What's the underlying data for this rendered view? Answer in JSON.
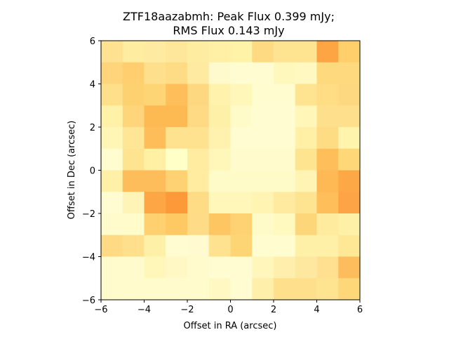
{
  "chart_data": {
    "type": "heatmap",
    "title_line1": "ZTF18aazabmh: Peak Flux 0.399 mJy;",
    "title_line2": "RMS Flux 0.143 mJy",
    "xlabel": "Offset in RA (arcsec)",
    "ylabel": "Offset in Dec (arcsec)",
    "xlim": [
      -6,
      6
    ],
    "ylim": [
      -6,
      6
    ],
    "xticks": [
      -6,
      -4,
      -2,
      0,
      2,
      4,
      6
    ],
    "yticks": [
      -6,
      -4,
      -2,
      0,
      2,
      4,
      6
    ],
    "xtick_labels": [
      "−6",
      "−4",
      "−2",
      "0",
      "2",
      "4",
      "6"
    ],
    "ytick_labels": [
      "−6",
      "−4",
      "−2",
      "0",
      "2",
      "4",
      "6"
    ],
    "colormap": "YlOrRd (light end)",
    "grid": "12x12 pixels, 1 arcsec each; rows listed from top (Dec 6) to bottom (Dec -6), columns from left (RA -6) to right (RA 6)",
    "pixel_colors": [
      [
        "#fee292",
        "#feeda0",
        "#feeaa0",
        "#fee79a",
        "#feeda0",
        "#fff0a5",
        "#fff3a8",
        "#feda83",
        "#fee390",
        "#fee390",
        "#fda443",
        "#fecf6a"
      ],
      [
        "#fed57a",
        "#fece6f",
        "#fee08c",
        "#fedc85",
        "#feeaa0",
        "#ffface",
        "#fffcd2",
        "#fffcd2",
        "#fff8bc",
        "#fff8c0",
        "#fed97d",
        "#fed97d"
      ],
      [
        "#fee08a",
        "#fed170",
        "#fed574",
        "#febf5a",
        "#fed880",
        "#fff2ac",
        "#fff6ba",
        "#fffcd0",
        "#fffcd0",
        "#fee390",
        "#fedd85",
        "#fed880"
      ],
      [
        "#fff1a8",
        "#fed57a",
        "#feba52",
        "#feba52",
        "#feda84",
        "#fff0a8",
        "#fffbc8",
        "#fffcd2",
        "#fffcd2",
        "#fff6b8",
        "#fee08c",
        "#fee08c"
      ],
      [
        "#fff6b6",
        "#fee696",
        "#febd58",
        "#fee290",
        "#fee290",
        "#fff2ae",
        "#fffcd2",
        "#fffcd2",
        "#fffcd2",
        "#fff0a6",
        "#fedc84",
        "#fff4ac"
      ],
      [
        "#fffcd0",
        "#fee391",
        "#fff0a3",
        "#ffffc8",
        "#ffeca0",
        "#fff6ba",
        "#fffbcc",
        "#fffbcc",
        "#fffbcc",
        "#fee48e",
        "#febf5b",
        "#fed779"
      ],
      [
        "#fff0a8",
        "#febd5b",
        "#febd5b",
        "#fed272",
        "#ffeca0",
        "#fffbc8",
        "#fffbc8",
        "#fffbc8",
        "#fffbc8",
        "#fff4b4",
        "#feb955",
        "#fda846"
      ],
      [
        "#fffcd2",
        "#fff4b8",
        "#fda645",
        "#fd9939",
        "#fedc85",
        "#fff6ba",
        "#fff6ba",
        "#fff4b2",
        "#ffeaa0",
        "#fee390",
        "#febe5a",
        "#fda546"
      ],
      [
        "#fffbca",
        "#fffbca",
        "#fed06f",
        "#fec863",
        "#fedb87",
        "#fec563",
        "#fed272",
        "#fffbc8",
        "#fff8bf",
        "#fed67a",
        "#ffeb9e",
        "#fff0a8"
      ],
      [
        "#feda84",
        "#fee08c",
        "#fff0a8",
        "#fffcd2",
        "#fffad0",
        "#fee290",
        "#fed575",
        "#fffcd0",
        "#fffcd0",
        "#fff0a8",
        "#fff0a8",
        "#fee896"
      ],
      [
        "#fffbcc",
        "#fffbcc",
        "#fff6ba",
        "#fff8c4",
        "#fffbcc",
        "#fffcd2",
        "#fffcd2",
        "#fff6bc",
        "#ffeeac",
        "#fee8a0",
        "#fee090",
        "#febd5d"
      ],
      [
        "#fffbcc",
        "#fffbcc",
        "#fffbcc",
        "#fffbcc",
        "#fffbcc",
        "#fff8c2",
        "#fffcd2",
        "#feefab",
        "#fee08c",
        "#fee08c",
        "#fee390",
        "#fed779"
      ]
    ]
  }
}
